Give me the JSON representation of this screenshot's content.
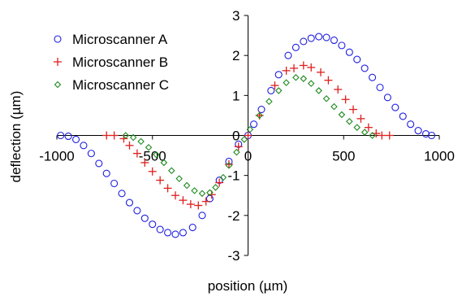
{
  "chart_data": {
    "type": "scatter",
    "title": "",
    "xlabel": "position (µm)",
    "ylabel": "deflection (µm)",
    "xlim": [
      -1000,
      1000
    ],
    "ylim": [
      -3,
      3
    ],
    "xticks": [
      -1000,
      -500,
      0,
      500,
      1000
    ],
    "yticks": [
      -3,
      -2,
      -1,
      0,
      1,
      2,
      3
    ],
    "grid": false,
    "legend_position": "top-left",
    "series": [
      {
        "name": "Microscanner A",
        "marker": "circle",
        "color": "#1f1fe0",
        "points": [
          [
            -980,
            0.0
          ],
          [
            -940,
            -0.02
          ],
          [
            -900,
            -0.1
          ],
          [
            -860,
            -0.25
          ],
          [
            -820,
            -0.45
          ],
          [
            -780,
            -0.7
          ],
          [
            -740,
            -0.95
          ],
          [
            -700,
            -1.2
          ],
          [
            -660,
            -1.45
          ],
          [
            -620,
            -1.68
          ],
          [
            -580,
            -1.88
          ],
          [
            -540,
            -2.07
          ],
          [
            -500,
            -2.22
          ],
          [
            -460,
            -2.35
          ],
          [
            -420,
            -2.43
          ],
          [
            -380,
            -2.47
          ],
          [
            -340,
            -2.43
          ],
          [
            -290,
            -2.3
          ],
          [
            -240,
            -2.0
          ],
          [
            -200,
            -1.58
          ],
          [
            -150,
            -1.12
          ],
          [
            -100,
            -0.65
          ],
          [
            -50,
            -0.22
          ],
          [
            0,
            0.0
          ],
          [
            30,
            0.28
          ],
          [
            70,
            0.65
          ],
          [
            120,
            1.12
          ],
          [
            160,
            1.52
          ],
          [
            210,
            2.0
          ],
          [
            250,
            2.2
          ],
          [
            290,
            2.35
          ],
          [
            330,
            2.43
          ],
          [
            370,
            2.47
          ],
          [
            410,
            2.45
          ],
          [
            450,
            2.38
          ],
          [
            490,
            2.25
          ],
          [
            530,
            2.08
          ],
          [
            570,
            1.9
          ],
          [
            610,
            1.68
          ],
          [
            650,
            1.45
          ],
          [
            690,
            1.2
          ],
          [
            730,
            0.95
          ],
          [
            770,
            0.7
          ],
          [
            810,
            0.48
          ],
          [
            850,
            0.28
          ],
          [
            890,
            0.12
          ],
          [
            930,
            0.04
          ],
          [
            960,
            0.0
          ]
        ]
      },
      {
        "name": "Microscanner B",
        "marker": "plus",
        "color": "#e01f1f",
        "points": [
          [
            -740,
            0.0
          ],
          [
            -700,
            0.0
          ],
          [
            -650,
            -0.08
          ],
          [
            -620,
            -0.25
          ],
          [
            -580,
            -0.45
          ],
          [
            -540,
            -0.68
          ],
          [
            -500,
            -0.9
          ],
          [
            -460,
            -1.12
          ],
          [
            -420,
            -1.32
          ],
          [
            -380,
            -1.5
          ],
          [
            -340,
            -1.62
          ],
          [
            -300,
            -1.72
          ],
          [
            -260,
            -1.75
          ],
          [
            -220,
            -1.65
          ],
          [
            -190,
            -1.48
          ],
          [
            -150,
            -1.18
          ],
          [
            -100,
            -0.72
          ],
          [
            -50,
            -0.28
          ],
          [
            0,
            0.0
          ],
          [
            60,
            0.5
          ],
          [
            140,
            1.25
          ],
          [
            200,
            1.62
          ],
          [
            240,
            1.68
          ],
          [
            290,
            1.75
          ],
          [
            330,
            1.7
          ],
          [
            380,
            1.58
          ],
          [
            420,
            1.38
          ],
          [
            470,
            1.15
          ],
          [
            510,
            0.9
          ],
          [
            550,
            0.65
          ],
          [
            590,
            0.42
          ],
          [
            630,
            0.2
          ],
          [
            670,
            0.05
          ],
          [
            700,
            0.0
          ],
          [
            740,
            0.0
          ]
        ]
      },
      {
        "name": "Microscanner C",
        "marker": "diamond",
        "color": "#1f8a1f",
        "points": [
          [
            -640,
            0.0
          ],
          [
            -600,
            -0.05
          ],
          [
            -560,
            -0.15
          ],
          [
            -520,
            -0.3
          ],
          [
            -480,
            -0.48
          ],
          [
            -440,
            -0.68
          ],
          [
            -400,
            -0.88
          ],
          [
            -360,
            -1.08
          ],
          [
            -320,
            -1.25
          ],
          [
            -280,
            -1.38
          ],
          [
            -240,
            -1.45
          ],
          [
            -200,
            -1.43
          ],
          [
            -170,
            -1.3
          ],
          [
            -130,
            -1.05
          ],
          [
            -100,
            -0.75
          ],
          [
            -60,
            -0.42
          ],
          [
            -20,
            -0.1
          ],
          [
            10,
            0.15
          ],
          [
            60,
            0.5
          ],
          [
            110,
            0.85
          ],
          [
            160,
            1.12
          ],
          [
            200,
            1.32
          ],
          [
            250,
            1.45
          ],
          [
            290,
            1.42
          ],
          [
            330,
            1.3
          ],
          [
            370,
            1.12
          ],
          [
            410,
            0.92
          ],
          [
            450,
            0.72
          ],
          [
            490,
            0.52
          ],
          [
            530,
            0.35
          ],
          [
            570,
            0.2
          ],
          [
            610,
            0.08
          ],
          [
            650,
            0.0
          ]
        ]
      }
    ]
  }
}
